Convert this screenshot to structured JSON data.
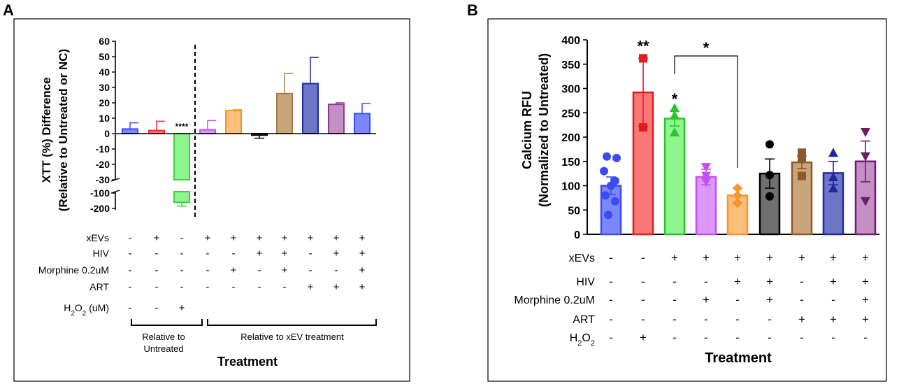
{
  "chart_data": [
    {
      "panel": "A",
      "type": "bar",
      "ylabel_line1": "XTT (%) Difference",
      "ylabel_line2": "(Relative to Untreated or NC)",
      "xlabel": "Treatment",
      "ylim_upper": [
        -30,
        60
      ],
      "ylim_lower": [
        -200,
        -100
      ],
      "y_ticks_upper": [
        "60",
        "50",
        "40",
        "30",
        "20",
        "10",
        "0",
        "-10",
        "-20",
        "-30"
      ],
      "y_ticks_lower": [
        "-100",
        "-200"
      ],
      "bars": [
        {
          "value": 3,
          "err": 4,
          "color": "#3b4cf5",
          "fill": "#7b87fb"
        },
        {
          "value": 2,
          "err": 6,
          "color": "#ef2f2f",
          "fill": "#f87777"
        },
        {
          "value": -160,
          "err": 25,
          "color": "#35d535",
          "fill": "#8ff58f"
        },
        {
          "value": 2.5,
          "err": 6,
          "color": "#c34ff0",
          "fill": "#dc97fb"
        },
        {
          "value": 15,
          "err": 0.5,
          "color": "#f5952a",
          "fill": "#fbbf7b"
        },
        {
          "value": -1,
          "err": 2,
          "color": "#000000",
          "fill": "#6f6f6f"
        },
        {
          "value": 26,
          "err": 13,
          "color": "#a47d4b",
          "fill": "#c9a57a"
        },
        {
          "value": 32.5,
          "err": 17,
          "color": "#1d2a9e",
          "fill": "#6d76c6"
        },
        {
          "value": 19,
          "err": 1,
          "color": "#8e3b8e",
          "fill": "#c58fc5"
        },
        {
          "value": 13,
          "err": 6.5,
          "color": "#3b4cf5",
          "fill": "#7b87fb"
        }
      ],
      "significance": [
        {
          "bar": 2,
          "label": "****"
        }
      ],
      "conditions": [
        {
          "label": "xEVs",
          "marks": [
            "-",
            "+",
            "-",
            "+",
            "+",
            "+",
            "+",
            "+",
            "+",
            "+"
          ]
        },
        {
          "label": "HIV",
          "marks": [
            "-",
            "-",
            "-",
            "-",
            "-",
            "+",
            "+",
            "-",
            "+",
            "+"
          ]
        },
        {
          "label": "Morphine 0.2uM",
          "marks": [
            "-",
            "-",
            "-",
            "-",
            "+",
            "-",
            "+",
            "-",
            "-",
            "+"
          ]
        },
        {
          "label": "ART",
          "marks": [
            "-",
            "-",
            "-",
            "-",
            "-",
            "-",
            "-",
            "+",
            "+",
            "+"
          ]
        },
        {
          "label": "H2O2 (uM)",
          "label_main": "H",
          "label_sub": "2",
          "label_mid": "O",
          "label_sub2": "2",
          "label_tail": " (uM)",
          "marks": [
            "-",
            "-",
            "+",
            "",
            "",
            "",
            "",
            "",
            "",
            ""
          ]
        }
      ],
      "groups": [
        {
          "line1": "Relative to",
          "line2": "Untreated"
        },
        {
          "line1": "Relative to xEV treatment",
          "line2": ""
        }
      ]
    },
    {
      "panel": "B",
      "type": "bar",
      "ylabel_line1": "Calcium RFU",
      "ylabel_line2": "(Normalized to Untreated)",
      "xlabel": "Treatment",
      "ylim": [
        0,
        400
      ],
      "y_ticks": [
        "0",
        "50",
        "100",
        "150",
        "200",
        "250",
        "300",
        "350",
        "400"
      ],
      "bars": [
        {
          "value": 100,
          "err": 18,
          "color": "#3b4cf5",
          "fill": "#7b87fb",
          "marker": "circle",
          "points": [
            160,
            157,
            130,
            110,
            100,
            80,
            68,
            40
          ]
        },
        {
          "value": 292,
          "err": 70,
          "color": "#e31b1b",
          "fill": "#f87777",
          "marker": "square",
          "points": [
            362,
            362,
            220
          ]
        },
        {
          "value": 238,
          "err": 15,
          "color": "#29c629",
          "fill": "#8ff58f",
          "marker": "triangle",
          "points": [
            260,
            245,
            210
          ]
        },
        {
          "value": 118,
          "err": 16,
          "color": "#c34ff0",
          "fill": "#dc97fb",
          "marker": "triangle-down",
          "points": [
            138,
            120,
            108
          ]
        },
        {
          "value": 80,
          "err": 14,
          "color": "#f5952a",
          "fill": "#fbbf7b",
          "marker": "diamond",
          "points": [
            95,
            80,
            64
          ]
        },
        {
          "value": 125,
          "err": 30,
          "color": "#000000",
          "fill": "#6f6f6f",
          "marker": "circle",
          "points": [
            185,
            122,
            78
          ]
        },
        {
          "value": 148,
          "err": 13,
          "color": "#8b5a2b",
          "fill": "#c9a57a",
          "marker": "square",
          "points": [
            168,
            158,
            120
          ]
        },
        {
          "value": 126,
          "err": 24,
          "color": "#1d2a9e",
          "fill": "#6d76c6",
          "marker": "triangle",
          "points": [
            168,
            118,
            95
          ]
        },
        {
          "value": 150,
          "err": 42,
          "color": "#6b1e6b",
          "fill": "#c58fc5",
          "marker": "triangle-down",
          "points": [
            210,
            160,
            68
          ]
        }
      ],
      "significance": [
        {
          "bar": 1,
          "label": "**"
        },
        {
          "bar": 2,
          "label": "*"
        }
      ],
      "bracket": {
        "from": 2,
        "to": 4,
        "label": "*"
      },
      "conditions": [
        {
          "label": "xEVs",
          "marks": [
            "-",
            "-",
            "+",
            "+",
            "+",
            "+",
            "+",
            "+",
            "+"
          ]
        },
        {
          "label": "HIV",
          "marks": [
            "-",
            "-",
            "-",
            "-",
            "+",
            "+",
            "-",
            "+",
            "+"
          ]
        },
        {
          "label": "Morphine 0.2uM",
          "marks": [
            "-",
            "-",
            "-",
            "+",
            "-",
            "+",
            "-",
            "-",
            "+"
          ]
        },
        {
          "label": "ART",
          "marks": [
            "-",
            "-",
            "-",
            "-",
            "-",
            "-",
            "+",
            "+",
            "+"
          ]
        },
        {
          "label": "H2O2",
          "marks": [
            "-",
            "+",
            "-",
            "-",
            "-",
            "-",
            "-",
            "-",
            "-"
          ]
        }
      ]
    }
  ]
}
